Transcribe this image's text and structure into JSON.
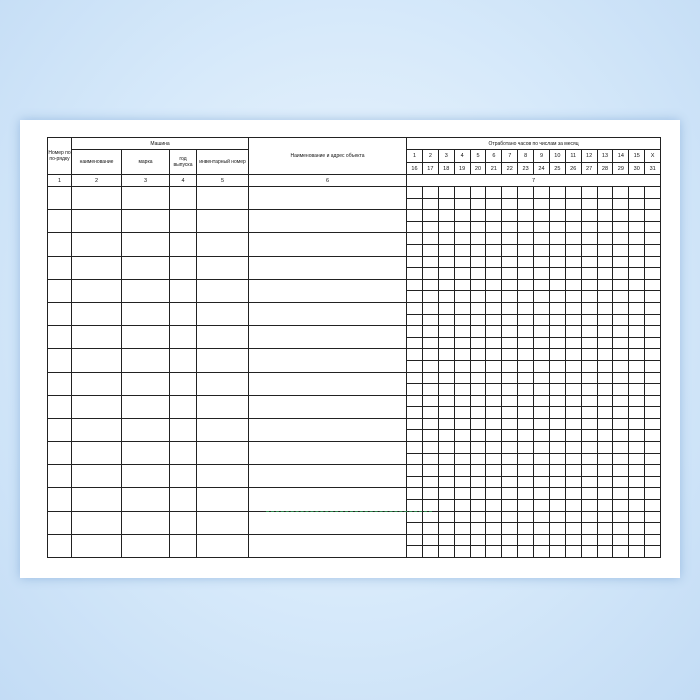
{
  "form": {
    "col_row_number": "Номер по по-рядку",
    "group_machine": "Машина",
    "col_name": "наименование",
    "col_brand": "марка",
    "col_year": "год выпуска",
    "col_inventory": "инвентарный номер",
    "col_object": "Наименование и адрес объекта",
    "group_hours": "Отработано часов по числам за  месяц",
    "days_first_half": [
      "1",
      "2",
      "3",
      "4",
      "5",
      "6",
      "7",
      "8",
      "9",
      "10",
      "11",
      "12",
      "13",
      "14",
      "15",
      "X"
    ],
    "days_second_half": [
      "16",
      "17",
      "18",
      "19",
      "20",
      "21",
      "22",
      "23",
      "24",
      "25",
      "26",
      "27",
      "28",
      "29",
      "30",
      "31"
    ],
    "column_numbers": [
      "1",
      "2",
      "3",
      "4",
      "5",
      "6",
      "7"
    ],
    "body_rows": 16
  }
}
